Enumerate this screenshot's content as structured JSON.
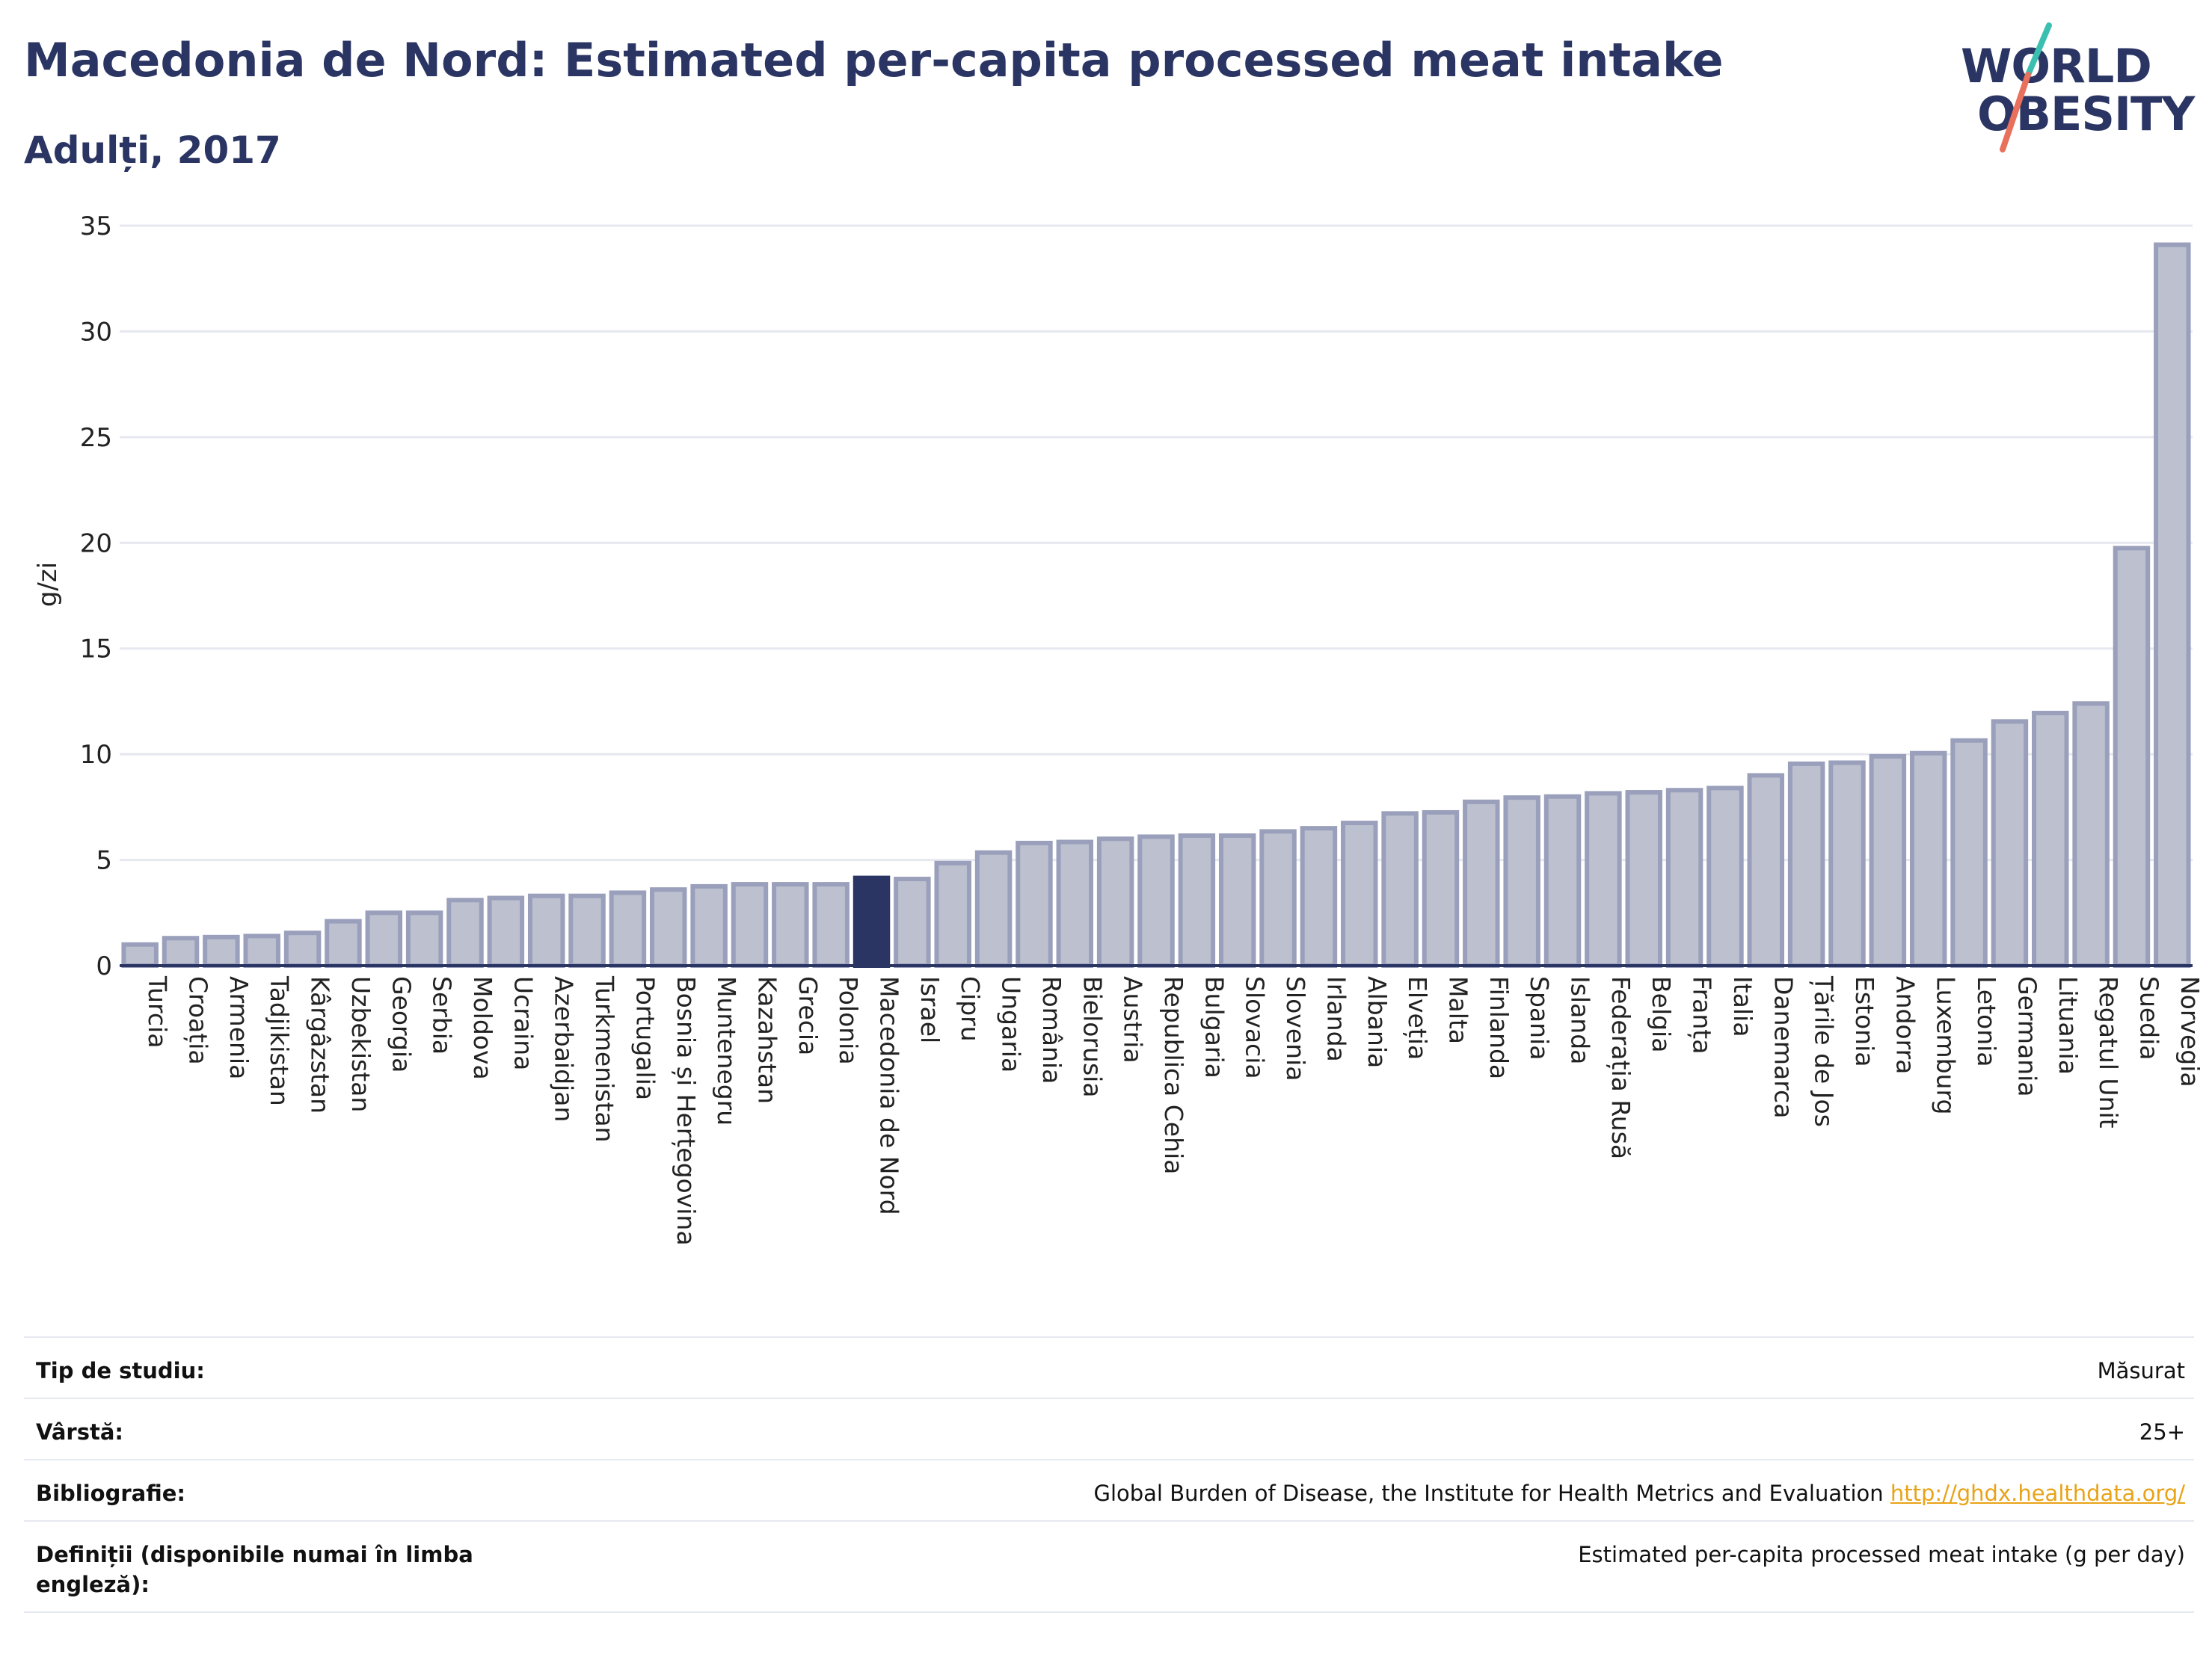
{
  "header": {
    "title": "Macedonia de Nord: Estimated per-capita processed meat intake",
    "subtitle": "Adulți, 2017"
  },
  "logo": {
    "line1": "WORLD",
    "line2": "OBESITY"
  },
  "colors": {
    "highlight": "#2b3563",
    "bar_fill": "#bcc0cf",
    "bar_stroke": "#9aa0bb",
    "grid": "#e6e8ef",
    "axis": "#2b3563",
    "logo_teal": "#3bbfb0",
    "logo_coral": "#e8705c"
  },
  "chart_data": {
    "type": "bar",
    "ylabel": "g/zi",
    "ylim": [
      0,
      35
    ],
    "yticks": [
      0,
      5,
      10,
      15,
      20,
      25,
      30,
      35
    ],
    "grid": true,
    "highlight": "Macedonia de Nord",
    "categories": [
      "Turcia",
      "Croația",
      "Armenia",
      "Tadjikistan",
      "Kârgâzstan",
      "Uzbekistan",
      "Georgia",
      "Serbia",
      "Moldova",
      "Ucraina",
      "Azerbaidjan",
      "Turkmenistan",
      "Portugalia",
      "Bosnia și Herțegovina",
      "Muntenegru",
      "Kazahstan",
      "Grecia",
      "Polonia",
      "Macedonia de Nord",
      "Israel",
      "Cipru",
      "Ungaria",
      "România",
      "Bielorusia",
      "Austria",
      "Republica Cehia",
      "Bulgaria",
      "Slovacia",
      "Slovenia",
      "Irlanda",
      "Albania",
      "Elveția",
      "Malta",
      "Finlanda",
      "Spania",
      "Islanda",
      "Federația Rusă",
      "Belgia",
      "Franța",
      "Italia",
      "Danemarca",
      "Țările de Jos",
      "Estonia",
      "Andorra",
      "Luxemburg",
      "Letonia",
      "Germania",
      "Lituania",
      "Regatul Unit",
      "Suedia",
      "Norvegia"
    ],
    "values": [
      1.0,
      1.3,
      1.35,
      1.4,
      1.55,
      2.1,
      2.5,
      2.5,
      3.1,
      3.2,
      3.3,
      3.3,
      3.45,
      3.6,
      3.75,
      3.85,
      3.85,
      3.85,
      4.15,
      4.1,
      4.85,
      5.35,
      5.8,
      5.85,
      6.0,
      6.1,
      6.15,
      6.15,
      6.35,
      6.5,
      6.75,
      7.2,
      7.25,
      7.75,
      7.95,
      8.0,
      8.15,
      8.2,
      8.3,
      8.4,
      9.0,
      9.55,
      9.6,
      9.9,
      10.05,
      10.65,
      11.55,
      11.95,
      12.4,
      19.75,
      34.1
    ]
  },
  "info": {
    "rows": [
      {
        "label": "Tip de studiu:",
        "value": "Măsurat"
      },
      {
        "label": "Vârstă:",
        "value": "25+"
      },
      {
        "label": "Bibliografie:",
        "value": "Global Burden of Disease, the Institute for Health Metrics and Evaluation",
        "link": "http://ghdx.healthdata.org/"
      },
      {
        "label": "Definiții (disponibile numai în limba engleză):",
        "value": "Estimated per-capita processed meat intake (g per day)"
      }
    ]
  }
}
